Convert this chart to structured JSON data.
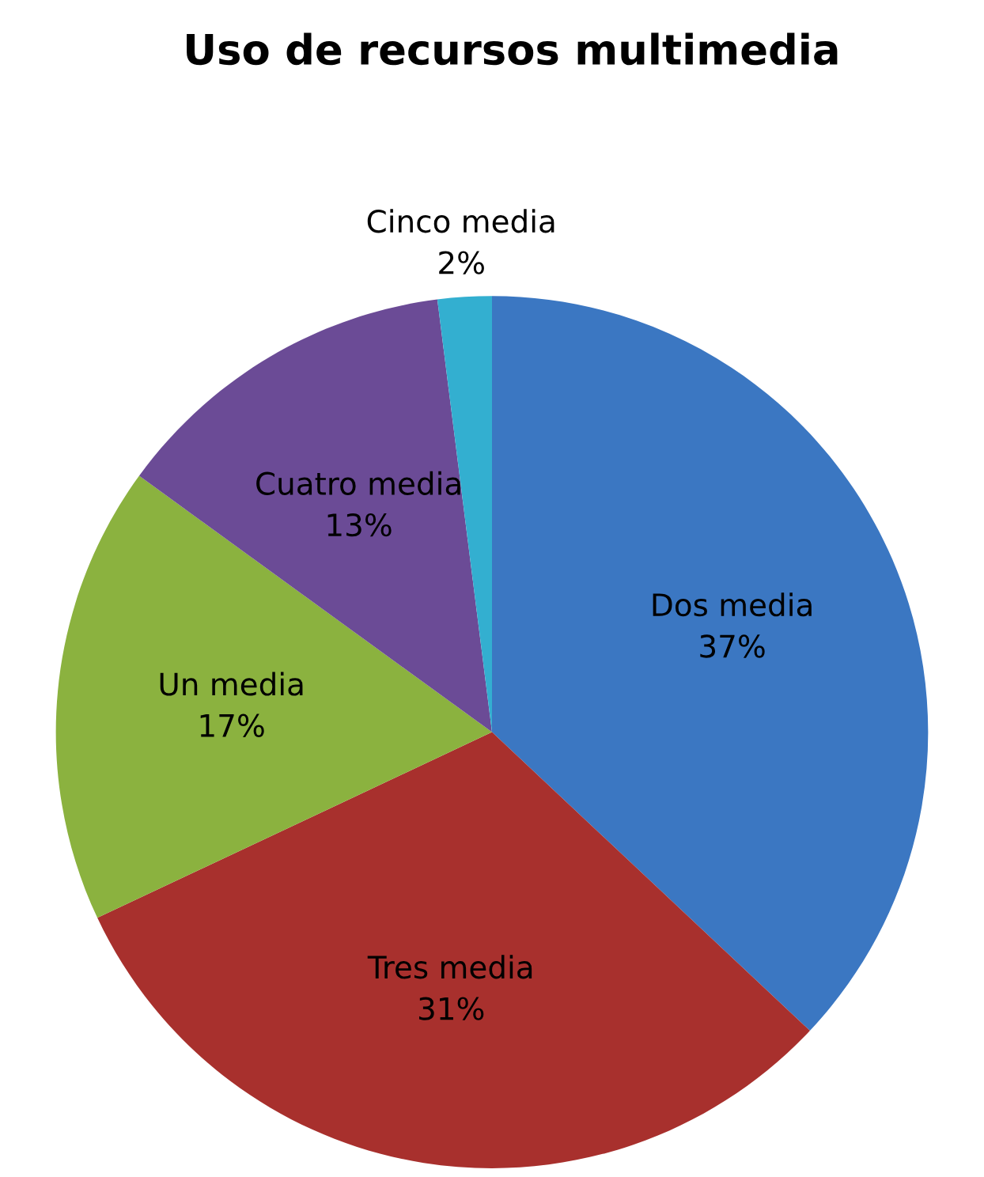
{
  "chart_data": {
    "type": "pie",
    "title": "Uso de recursos multimedia",
    "categories": [
      "Dos media",
      "Tres media",
      "Un media",
      "Cuatro media",
      "Cinco media"
    ],
    "values": [
      37,
      31,
      17,
      13,
      2
    ],
    "value_labels": [
      "37%",
      "31%",
      "17%",
      "13%",
      "2%"
    ],
    "colors": [
      "#3b77c2",
      "#a8302d",
      "#8bb23f",
      "#6b4b96",
      "#33afd0"
    ]
  }
}
